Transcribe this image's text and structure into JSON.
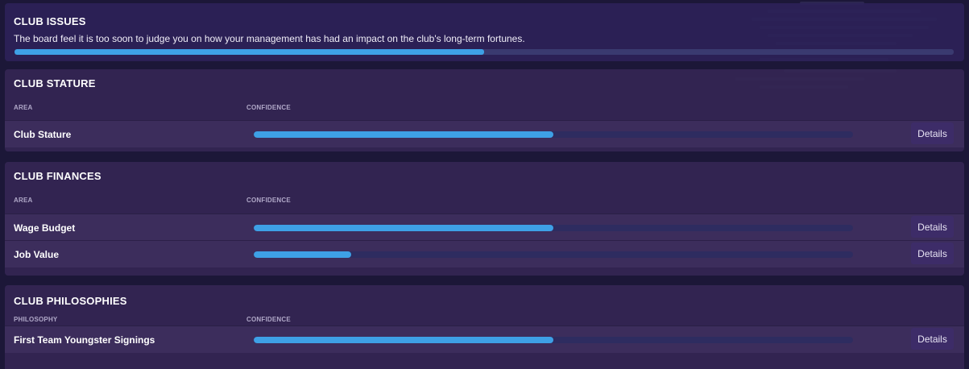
{
  "club_issues": {
    "title": "CLUB ISSUES",
    "description": "The board feel it is too soon to judge you on how your management has had an impact on the club's long-term fortunes.",
    "progress": 0.5
  },
  "club_stature": {
    "title": "CLUB STATURE",
    "col_area": "AREA",
    "col_confidence": "CONFIDENCE",
    "rows": [
      {
        "label": "Club Stature",
        "confidence": 0.5,
        "details": "Details"
      }
    ]
  },
  "club_finances": {
    "title": "CLUB FINANCES",
    "col_area": "AREA",
    "col_confidence": "CONFIDENCE",
    "rows": [
      {
        "label": "Wage Budget",
        "confidence": 0.5,
        "details": "Details"
      },
      {
        "label": "Job Value",
        "confidence": 0.163,
        "details": "Details"
      }
    ]
  },
  "club_philosophies": {
    "title": "CLUB PHILOSOPHIES",
    "col_area": "PHILOSOPHY",
    "col_confidence": "CONFIDENCE",
    "rows": [
      {
        "label": "First Team Youngster Signings",
        "confidence": 0.5,
        "details": "Details"
      }
    ]
  },
  "colors": {
    "accent_fill": "#3ea0e6",
    "track": "#2e2c60",
    "panel": "#342654",
    "background": "#1c1738"
  }
}
